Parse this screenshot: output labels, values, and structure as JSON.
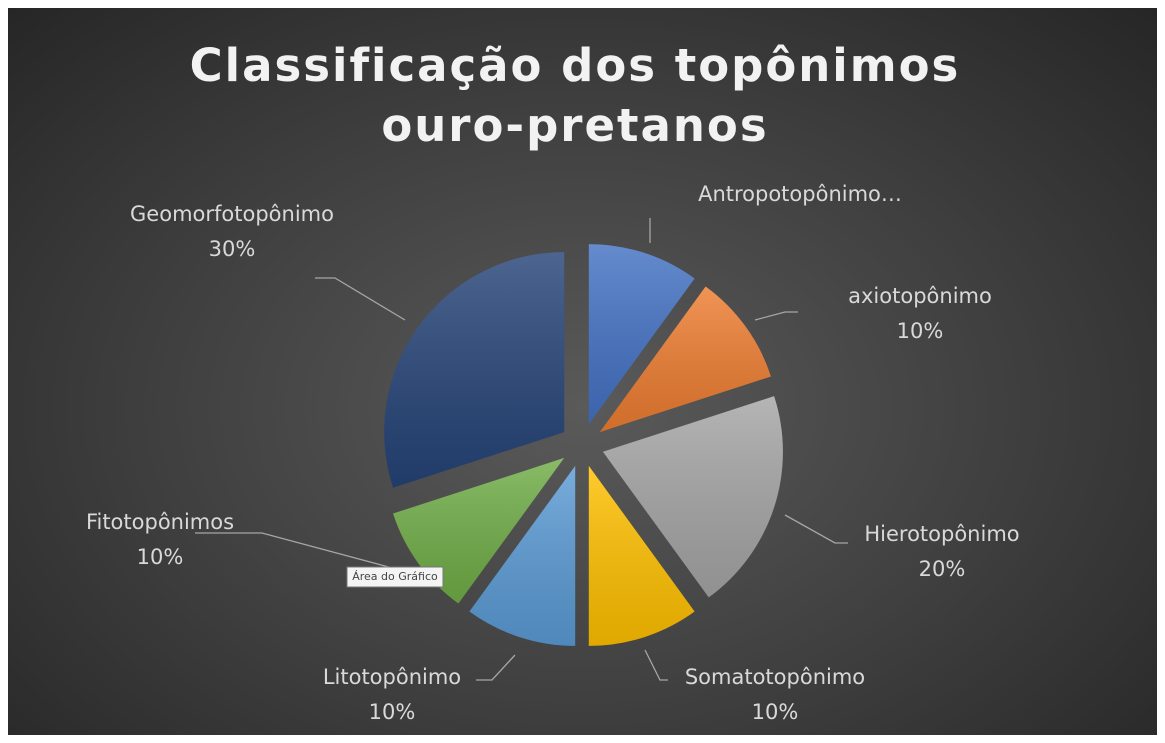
{
  "chart_data": {
    "type": "pie",
    "title": "Classificação dos topônimos ouro-pretanos",
    "categories": [
      "Antropotopônimo…",
      "axiotopônimo",
      "Hierotopônimo",
      "Somatotopônimo",
      "Litotopônimo",
      "Fitotopônimos",
      "Geomorfotopônimo"
    ],
    "values": [
      10,
      10,
      20,
      10,
      10,
      10,
      30
    ],
    "value_labels": [
      null,
      "10%",
      "20%",
      "10%",
      "10%",
      "10%",
      "30%"
    ],
    "colors": [
      "#4472c4",
      "#ed7d31",
      "#a5a5a5",
      "#ffc000",
      "#5b9bd5",
      "#70ad47",
      "#264478"
    ],
    "exploded": true,
    "tooltip": "Área do Gráfico"
  }
}
